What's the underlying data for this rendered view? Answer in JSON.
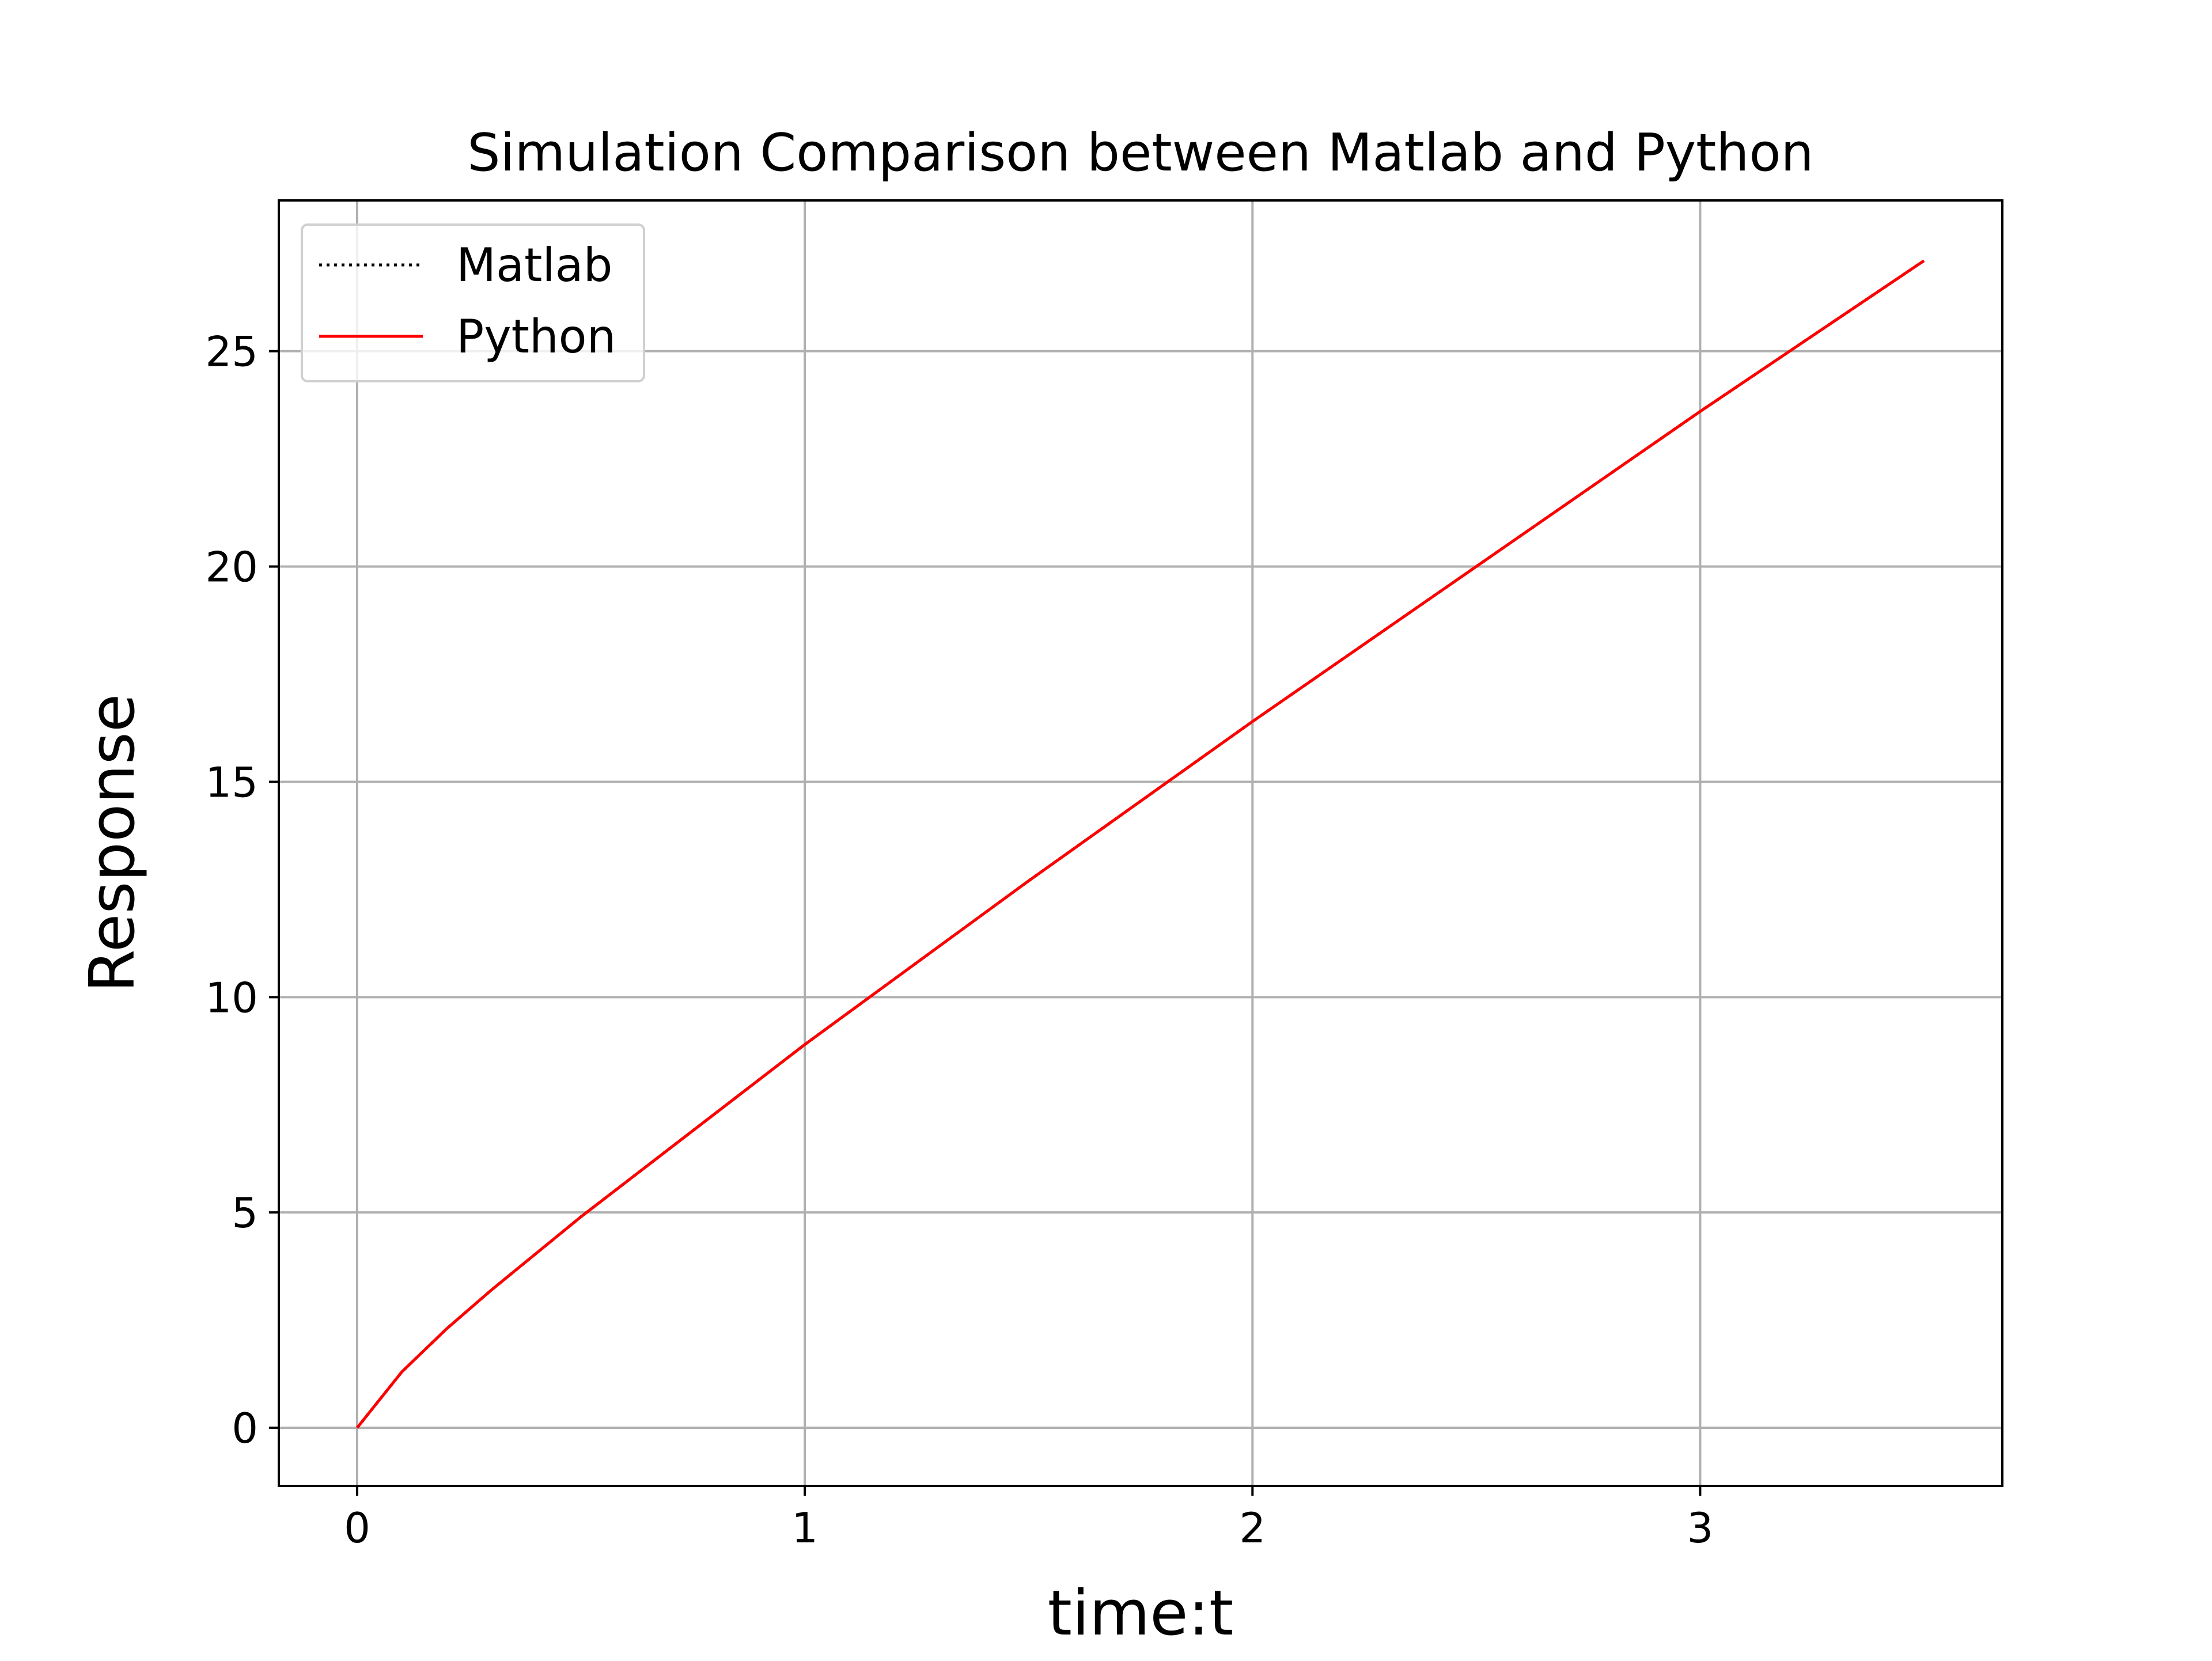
{
  "chart_data": {
    "type": "line",
    "title": "Simulation Comparison between Matlab and Python",
    "xlabel": "time:t",
    "ylabel": "Response",
    "xlim": [
      -0.175,
      3.675
    ],
    "ylim": [
      -1.35,
      28.5
    ],
    "xticks": [
      0,
      1,
      2,
      3
    ],
    "yticks": [
      0,
      5,
      10,
      15,
      20,
      25
    ],
    "grid": true,
    "legend": {
      "location": "top-left"
    },
    "series": [
      {
        "name": "Matlab",
        "color": "#000000",
        "style": "dotted",
        "x": [
          0,
          0.1,
          0.2,
          0.3,
          0.5,
          1.0,
          1.5,
          2.0,
          2.5,
          3.0,
          3.5
        ],
        "y": [
          0,
          1.3,
          2.3,
          3.2,
          4.9,
          8.9,
          12.7,
          16.4,
          20.0,
          23.6,
          27.1
        ]
      },
      {
        "name": "Python",
        "color": "#ff0000",
        "style": "solid",
        "x": [
          0,
          0.1,
          0.2,
          0.3,
          0.5,
          1.0,
          1.5,
          2.0,
          2.5,
          3.0,
          3.5
        ],
        "y": [
          0,
          1.3,
          2.3,
          3.2,
          4.9,
          8.9,
          12.7,
          16.4,
          20.0,
          23.6,
          27.1
        ]
      }
    ]
  }
}
